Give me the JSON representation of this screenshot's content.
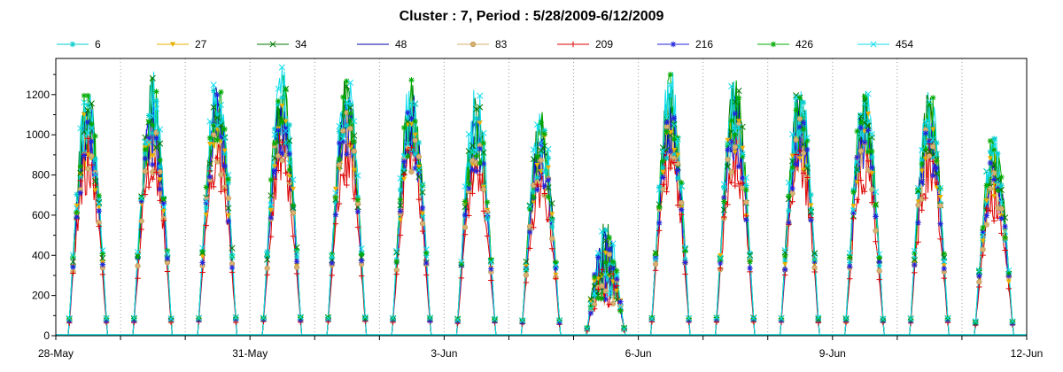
{
  "chart_data": {
    "type": "line",
    "title": "Cluster : 7, Period : 5/28/2009-6/12/2009",
    "xlabel": "",
    "ylabel": "",
    "x_start": "2009-05-28",
    "x_end": "2009-06-12",
    "x_ticks": [
      "28-May",
      "31-May",
      "3-Jun",
      "6-Jun",
      "9-Jun",
      "12-Jun"
    ],
    "y_ticks": [
      0,
      200,
      400,
      600,
      800,
      1000,
      1200
    ],
    "ylim": [
      0,
      1380
    ],
    "grid": "vertical-dotted-daily",
    "legend": "top",
    "series": [
      {
        "name": "6",
        "color": "#00CCCC",
        "marker": "star",
        "scale": 1.0
      },
      {
        "name": "27",
        "color": "#E8B000",
        "marker": "triangle-down",
        "scale": 0.95
      },
      {
        "name": "34",
        "color": "#007700",
        "marker": "x",
        "scale": 1.02
      },
      {
        "name": "48",
        "color": "#0000AA",
        "marker": "none",
        "scale": 0.97
      },
      {
        "name": "83",
        "color": "#D8B070",
        "marker": "circle",
        "scale": 0.9
      },
      {
        "name": "209",
        "color": "#DD0000",
        "marker": "plus",
        "scale": 0.8
      },
      {
        "name": "216",
        "color": "#2222DD",
        "marker": "star",
        "scale": 0.93
      },
      {
        "name": "426",
        "color": "#00AA00",
        "marker": "asterisk",
        "scale": 1.03
      },
      {
        "name": "454",
        "color": "#11DDEE",
        "marker": "x",
        "scale": 1.05
      }
    ],
    "daily_peaks": [
      {
        "date": "2009-05-28",
        "peak": 1230
      },
      {
        "date": "2009-05-29",
        "peak": 1260
      },
      {
        "date": "2009-05-30",
        "peak": 1290
      },
      {
        "date": "2009-05-31",
        "peak": 1300
      },
      {
        "date": "2009-06-01",
        "peak": 1300
      },
      {
        "date": "2009-06-02",
        "peak": 1260
      },
      {
        "date": "2009-06-03",
        "peak": 1200
      },
      {
        "date": "2009-06-04",
        "peak": 1100
      },
      {
        "date": "2009-06-05",
        "peak": 560
      },
      {
        "date": "2009-06-06",
        "peak": 1280
      },
      {
        "date": "2009-06-07",
        "peak": 1270
      },
      {
        "date": "2009-06-08",
        "peak": 1250
      },
      {
        "date": "2009-06-09",
        "peak": 1230
      },
      {
        "date": "2009-06-10",
        "peak": 1230
      },
      {
        "date": "2009-06-11",
        "peak": 1000
      }
    ]
  }
}
